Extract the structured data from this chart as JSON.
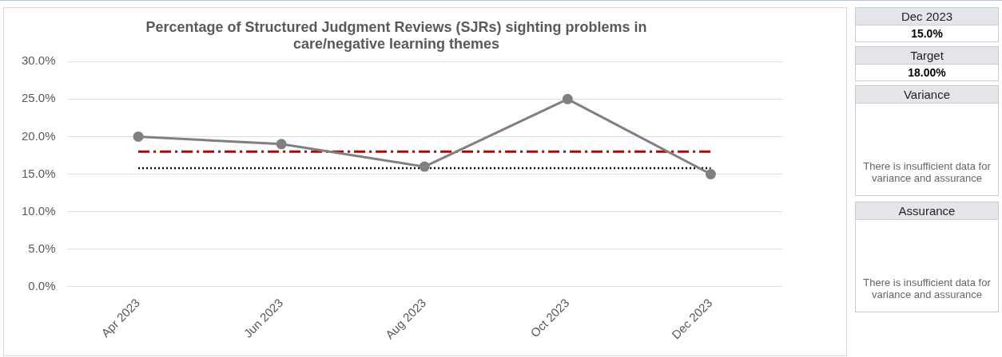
{
  "chart_data": [
    {
      "type": "line",
      "title": "Percentage of Structured Judgment Reviews (SJRs) sighting problems in care/negative learning themes",
      "categories": [
        "Apr 2023",
        "Jun 2023",
        "Aug 2023",
        "Oct 2023",
        "Dec 2023"
      ],
      "series": [
        {
          "color": "#808080",
          "values": [
            20.0,
            19.0,
            16.0,
            25.0,
            15.0
          ],
          "marker": "circle",
          "line_style": "solid"
        },
        {
          "color": "#c00000",
          "values": [
            18,
            18,
            18,
            18,
            18
          ],
          "marker": "none",
          "line_style": "dashed"
        },
        {
          "color": "#000000",
          "values": [
            15.8,
            15.8,
            15.8,
            15.8,
            15.8
          ],
          "marker": "none",
          "line_style": "dotted"
        }
      ],
      "ylim": [
        0,
        30
      ],
      "yticks": [
        {
          "value": 0,
          "label": "0.0%"
        },
        {
          "value": 5,
          "label": "5.0%"
        },
        {
          "value": 10,
          "label": "10.0%"
        },
        {
          "value": 15,
          "label": "15.0%"
        },
        {
          "value": 20,
          "label": "20.0%"
        },
        {
          "value": 25,
          "label": "25.0%"
        },
        {
          "value": 30,
          "label": "30.0%"
        }
      ],
      "grid": "y"
    },
    {
      "type": "other",
      "annotations": [
        "Dec 2023",
        "15.0%",
        "Target",
        "18.00%",
        "Variance",
        "There is insufficient data for variance and assurance",
        "Assurance",
        "There is insufficient data for variance and assurance"
      ]
    }
  ]
}
